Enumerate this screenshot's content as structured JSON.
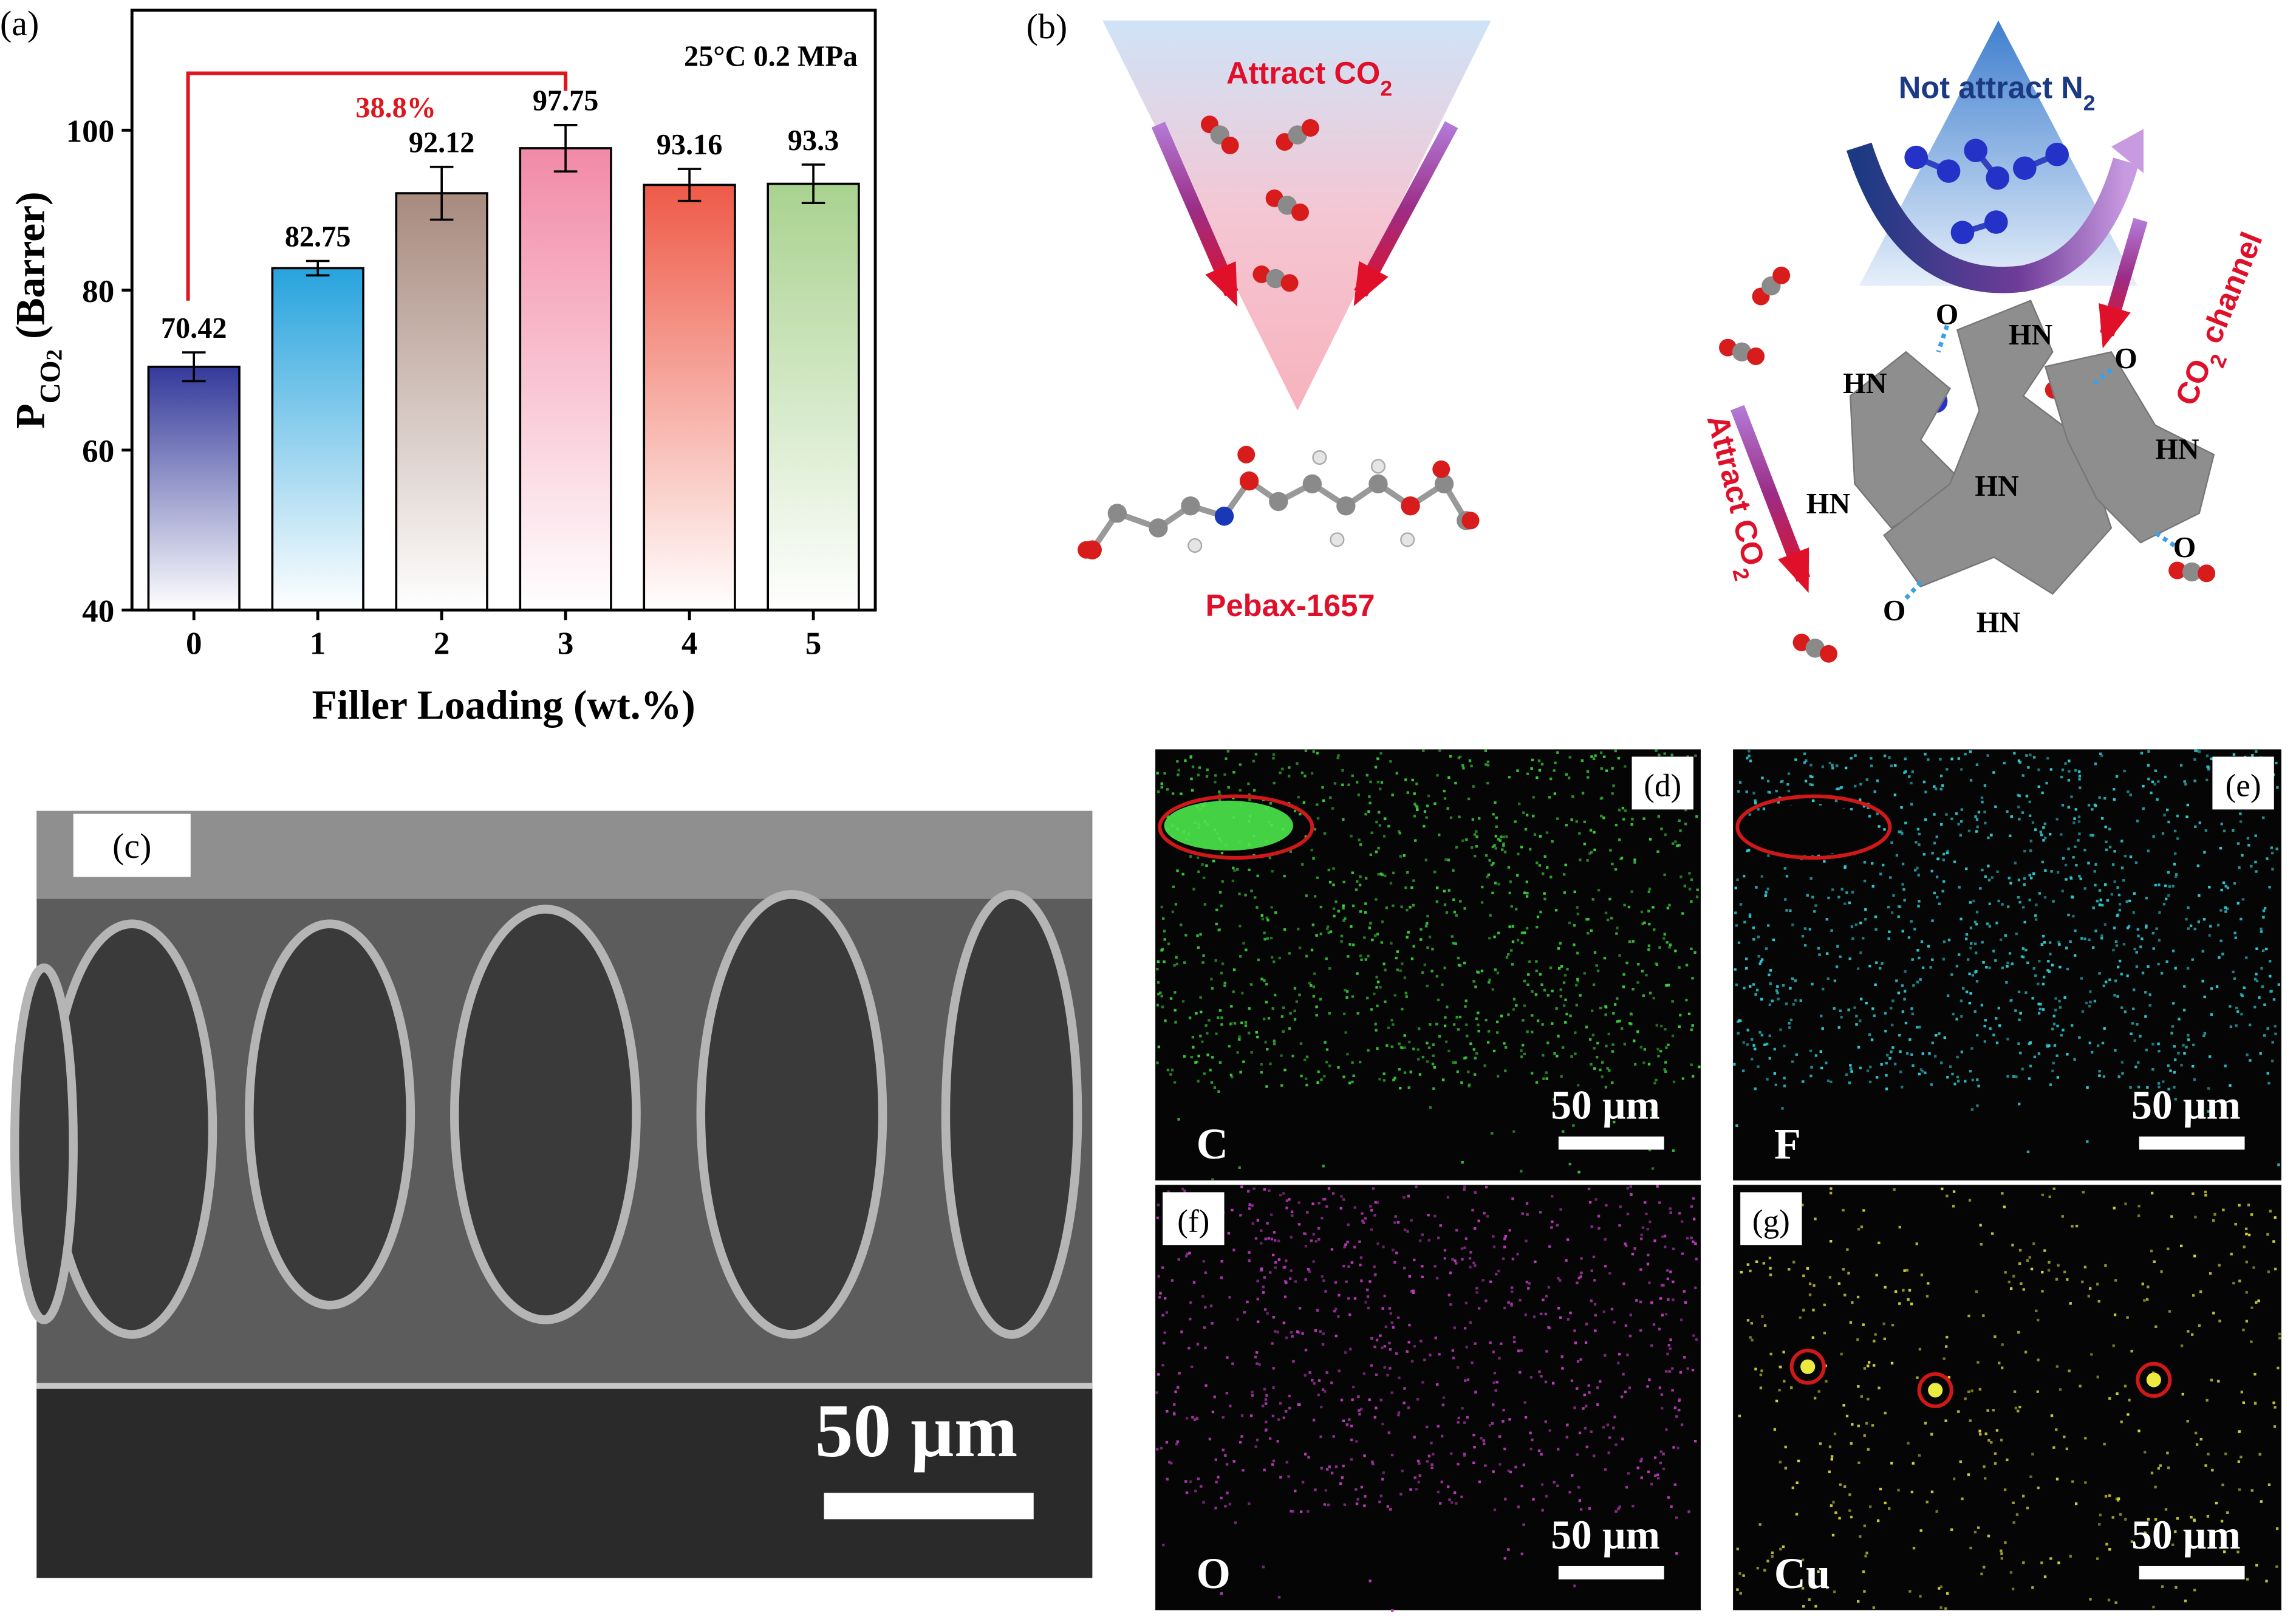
{
  "chart_data": {
    "type": "bar",
    "panel_label": "(a)",
    "annotation": "25°C 0.2 MPa",
    "increase_label": "38.8%",
    "xlabel": "Filler Loading (wt.%)",
    "ylabel_parts": [
      "P",
      "CO",
      "2",
      " (Barrer)"
    ],
    "categories": [
      "0",
      "1",
      "2",
      "3",
      "4",
      "5"
    ],
    "values": [
      70.42,
      82.75,
      92.12,
      97.75,
      93.16,
      93.3
    ],
    "errors": [
      1.8,
      0.9,
      3.3,
      2.9,
      2.0,
      2.4
    ],
    "colors": [
      "#34399a",
      "#27a3dd",
      "#a88a7e",
      "#f28aa8",
      "#ee5a48",
      "#a9d28f"
    ],
    "ylim": [
      40,
      115
    ],
    "yticks": [
      40,
      60,
      80,
      100
    ]
  },
  "schematic": {
    "panel_label": "(b)",
    "attract_top": [
      "Attract CO",
      "2"
    ],
    "molecule": "Pebax-1657",
    "not_attract": [
      "Not attract N",
      "2"
    ],
    "channel": [
      "CO",
      "2",
      " channel"
    ],
    "attract_side": [
      "Attract CO",
      "2"
    ],
    "hn": [
      "HN",
      "HN",
      "HN",
      "HN",
      "HN",
      "HN"
    ],
    "o": [
      "O",
      "O",
      "O",
      "O"
    ]
  },
  "sem": {
    "panel_label": "(c)",
    "scale": "50 µm"
  },
  "eds": [
    {
      "panel_label": "(d)",
      "element": "C",
      "scale": "50 µm"
    },
    {
      "panel_label": "(e)",
      "element": "F",
      "scale": "50 µm"
    },
    {
      "panel_label": "(f)",
      "element": "O",
      "scale": "50 µm"
    },
    {
      "panel_label": "(g)",
      "element": "Cu",
      "scale": "50 µm"
    }
  ]
}
